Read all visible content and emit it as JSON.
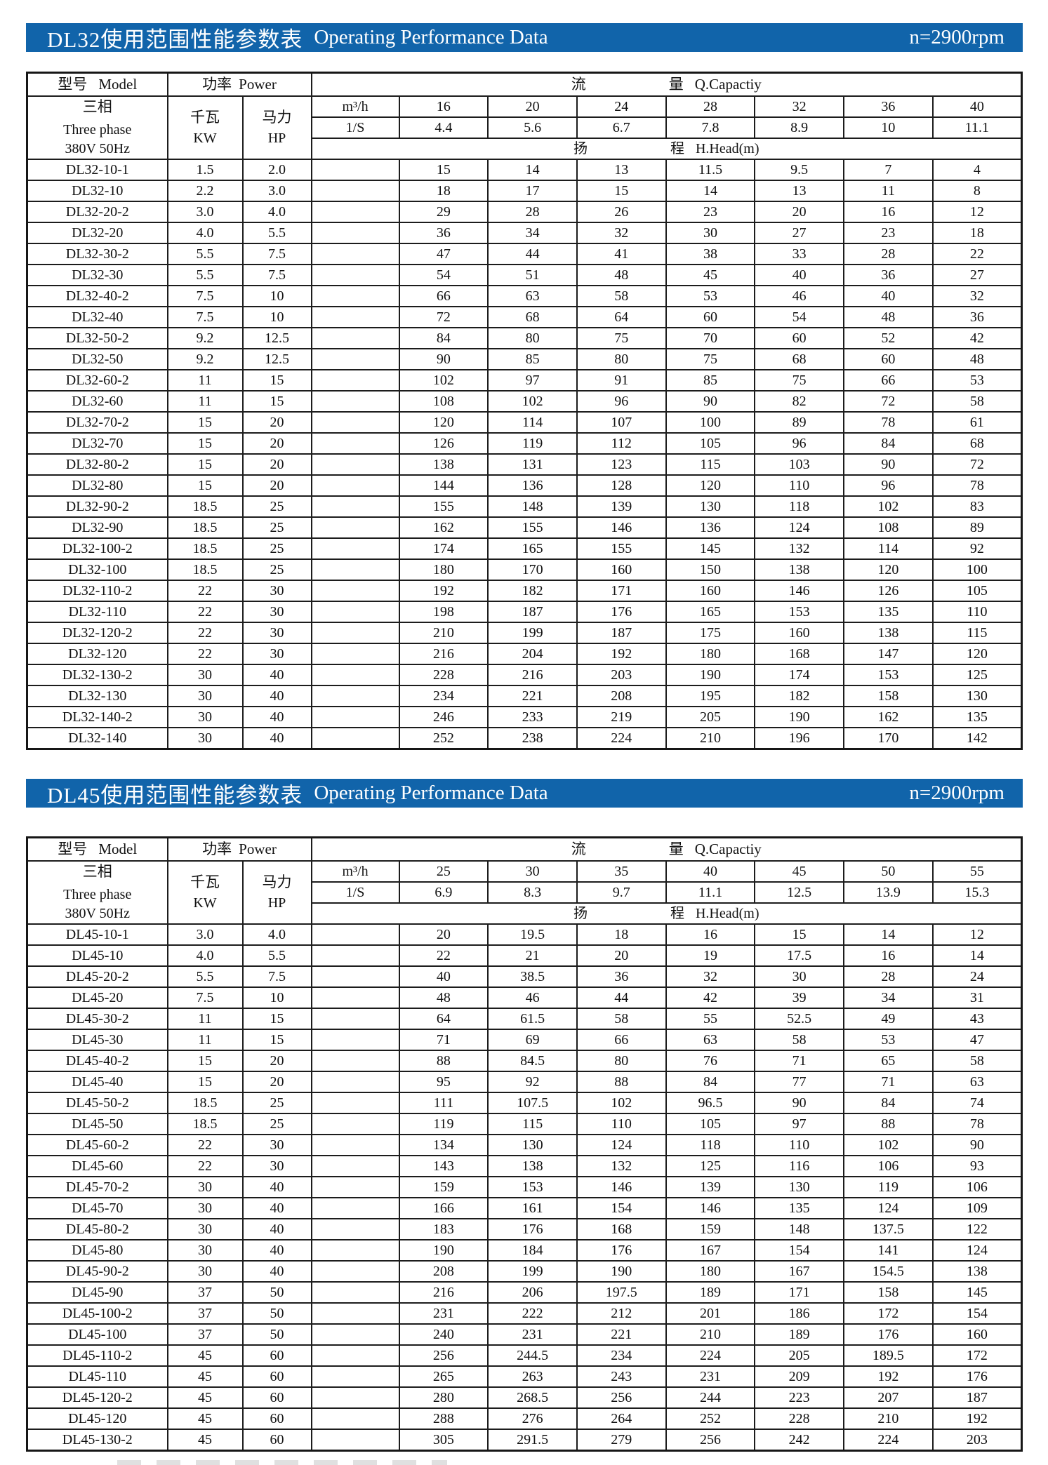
{
  "banner_color": "#1164aa",
  "tables": [
    {
      "banner": {
        "title_zh": "DL32使用范围性能参数表",
        "title_en": "Operating Performance Data",
        "speed": "n=2900rpm"
      },
      "header": {
        "model_zh": "型号",
        "model_en": "Model",
        "power_zh": "功率",
        "power_en": "Power",
        "cap_zh1": "流",
        "cap_zh2": "量",
        "cap_en": "Q.Capactiy",
        "phase_line1": "三相",
        "phase_line2": "Three phase",
        "phase_line3": "380V 50Hz",
        "kw_zh": "千瓦",
        "kw_en": "KW",
        "hp_zh": "马力",
        "hp_en": "HP",
        "unit_m3h": "m³/h",
        "unit_ls": "1/S",
        "flow_values": [
          "16",
          "20",
          "24",
          "28",
          "32",
          "36",
          "40"
        ],
        "ls_values": [
          "4.4",
          "5.6",
          "6.7",
          "7.8",
          "8.9",
          "10",
          "11.1"
        ],
        "head_zh1": "扬",
        "head_zh2": "程",
        "head_en": "H.Head(m)"
      },
      "rows": [
        {
          "model": "DL32-10-1",
          "kw": "1.5",
          "hp": "2.0",
          "heads": [
            "15",
            "14",
            "13",
            "11.5",
            "9.5",
            "7",
            "4"
          ]
        },
        {
          "model": "DL32-10",
          "kw": "2.2",
          "hp": "3.0",
          "heads": [
            "18",
            "17",
            "15",
            "14",
            "13",
            "11",
            "8"
          ]
        },
        {
          "model": "DL32-20-2",
          "kw": "3.0",
          "hp": "4.0",
          "heads": [
            "29",
            "28",
            "26",
            "23",
            "20",
            "16",
            "12"
          ]
        },
        {
          "model": "DL32-20",
          "kw": "4.0",
          "hp": "5.5",
          "heads": [
            "36",
            "34",
            "32",
            "30",
            "27",
            "23",
            "18"
          ]
        },
        {
          "model": "DL32-30-2",
          "kw": "5.5",
          "hp": "7.5",
          "heads": [
            "47",
            "44",
            "41",
            "38",
            "33",
            "28",
            "22"
          ]
        },
        {
          "model": "DL32-30",
          "kw": "5.5",
          "hp": "7.5",
          "heads": [
            "54",
            "51",
            "48",
            "45",
            "40",
            "36",
            "27"
          ]
        },
        {
          "model": "DL32-40-2",
          "kw": "7.5",
          "hp": "10",
          "heads": [
            "66",
            "63",
            "58",
            "53",
            "46",
            "40",
            "32"
          ]
        },
        {
          "model": "DL32-40",
          "kw": "7.5",
          "hp": "10",
          "heads": [
            "72",
            "68",
            "64",
            "60",
            "54",
            "48",
            "36"
          ]
        },
        {
          "model": "DL32-50-2",
          "kw": "9.2",
          "hp": "12.5",
          "heads": [
            "84",
            "80",
            "75",
            "70",
            "60",
            "52",
            "42"
          ]
        },
        {
          "model": "DL32-50",
          "kw": "9.2",
          "hp": "12.5",
          "heads": [
            "90",
            "85",
            "80",
            "75",
            "68",
            "60",
            "48"
          ]
        },
        {
          "model": "DL32-60-2",
          "kw": "11",
          "hp": "15",
          "heads": [
            "102",
            "97",
            "91",
            "85",
            "75",
            "66",
            "53"
          ]
        },
        {
          "model": "DL32-60",
          "kw": "11",
          "hp": "15",
          "heads": [
            "108",
            "102",
            "96",
            "90",
            "82",
            "72",
            "58"
          ]
        },
        {
          "model": "DL32-70-2",
          "kw": "15",
          "hp": "20",
          "heads": [
            "120",
            "114",
            "107",
            "100",
            "89",
            "78",
            "61"
          ]
        },
        {
          "model": "DL32-70",
          "kw": "15",
          "hp": "20",
          "heads": [
            "126",
            "119",
            "112",
            "105",
            "96",
            "84",
            "68"
          ]
        },
        {
          "model": "DL32-80-2",
          "kw": "15",
          "hp": "20",
          "heads": [
            "138",
            "131",
            "123",
            "115",
            "103",
            "90",
            "72"
          ]
        },
        {
          "model": "DL32-80",
          "kw": "15",
          "hp": "20",
          "heads": [
            "144",
            "136",
            "128",
            "120",
            "110",
            "96",
            "78"
          ]
        },
        {
          "model": "DL32-90-2",
          "kw": "18.5",
          "hp": "25",
          "heads": [
            "155",
            "148",
            "139",
            "130",
            "118",
            "102",
            "83"
          ]
        },
        {
          "model": "DL32-90",
          "kw": "18.5",
          "hp": "25",
          "heads": [
            "162",
            "155",
            "146",
            "136",
            "124",
            "108",
            "89"
          ]
        },
        {
          "model": "DL32-100-2",
          "kw": "18.5",
          "hp": "25",
          "heads": [
            "174",
            "165",
            "155",
            "145",
            "132",
            "114",
            "92"
          ]
        },
        {
          "model": "DL32-100",
          "kw": "18.5",
          "hp": "25",
          "heads": [
            "180",
            "170",
            "160",
            "150",
            "138",
            "120",
            "100"
          ]
        },
        {
          "model": "DL32-110-2",
          "kw": "22",
          "hp": "30",
          "heads": [
            "192",
            "182",
            "171",
            "160",
            "146",
            "126",
            "105"
          ]
        },
        {
          "model": "DL32-110",
          "kw": "22",
          "hp": "30",
          "heads": [
            "198",
            "187",
            "176",
            "165",
            "153",
            "135",
            "110"
          ]
        },
        {
          "model": "DL32-120-2",
          "kw": "22",
          "hp": "30",
          "heads": [
            "210",
            "199",
            "187",
            "175",
            "160",
            "138",
            "115"
          ]
        },
        {
          "model": "DL32-120",
          "kw": "22",
          "hp": "30",
          "heads": [
            "216",
            "204",
            "192",
            "180",
            "168",
            "147",
            "120"
          ]
        },
        {
          "model": "DL32-130-2",
          "kw": "30",
          "hp": "40",
          "heads": [
            "228",
            "216",
            "203",
            "190",
            "174",
            "153",
            "125"
          ]
        },
        {
          "model": "DL32-130",
          "kw": "30",
          "hp": "40",
          "heads": [
            "234",
            "221",
            "208",
            "195",
            "182",
            "158",
            "130"
          ]
        },
        {
          "model": "DL32-140-2",
          "kw": "30",
          "hp": "40",
          "heads": [
            "246",
            "233",
            "219",
            "205",
            "190",
            "162",
            "135"
          ]
        },
        {
          "model": "DL32-140",
          "kw": "30",
          "hp": "40",
          "heads": [
            "252",
            "238",
            "224",
            "210",
            "196",
            "170",
            "142"
          ]
        }
      ]
    },
    {
      "banner": {
        "title_zh": "DL45使用范围性能参数表",
        "title_en": "Operating Performance Data",
        "speed": "n=2900rpm"
      },
      "header": {
        "model_zh": "型号",
        "model_en": "Model",
        "power_zh": "功率",
        "power_en": "Power",
        "cap_zh1": "流",
        "cap_zh2": "量",
        "cap_en": "Q.Capactiy",
        "phase_line1": "三相",
        "phase_line2": "Three phase",
        "phase_line3": "380V 50Hz",
        "kw_zh": "千瓦",
        "kw_en": "KW",
        "hp_zh": "马力",
        "hp_en": "HP",
        "unit_m3h": "m³/h",
        "unit_ls": "1/S",
        "flow_values": [
          "25",
          "30",
          "35",
          "40",
          "45",
          "50",
          "55"
        ],
        "ls_values": [
          "6.9",
          "8.3",
          "9.7",
          "11.1",
          "12.5",
          "13.9",
          "15.3"
        ],
        "head_zh1": "扬",
        "head_zh2": "程",
        "head_en": "H.Head(m)"
      },
      "rows": [
        {
          "model": "DL45-10-1",
          "kw": "3.0",
          "hp": "4.0",
          "heads": [
            "20",
            "19.5",
            "18",
            "16",
            "15",
            "14",
            "12"
          ]
        },
        {
          "model": "DL45-10",
          "kw": "4.0",
          "hp": "5.5",
          "heads": [
            "22",
            "21",
            "20",
            "19",
            "17.5",
            "16",
            "14"
          ]
        },
        {
          "model": "DL45-20-2",
          "kw": "5.5",
          "hp": "7.5",
          "heads": [
            "40",
            "38.5",
            "36",
            "32",
            "30",
            "28",
            "24"
          ]
        },
        {
          "model": "DL45-20",
          "kw": "7.5",
          "hp": "10",
          "heads": [
            "48",
            "46",
            "44",
            "42",
            "39",
            "34",
            "31"
          ]
        },
        {
          "model": "DL45-30-2",
          "kw": "11",
          "hp": "15",
          "heads": [
            "64",
            "61.5",
            "58",
            "55",
            "52.5",
            "49",
            "43"
          ]
        },
        {
          "model": "DL45-30",
          "kw": "11",
          "hp": "15",
          "heads": [
            "71",
            "69",
            "66",
            "63",
            "58",
            "53",
            "47"
          ]
        },
        {
          "model": "DL45-40-2",
          "kw": "15",
          "hp": "20",
          "heads": [
            "88",
            "84.5",
            "80",
            "76",
            "71",
            "65",
            "58"
          ]
        },
        {
          "model": "DL45-40",
          "kw": "15",
          "hp": "20",
          "heads": [
            "95",
            "92",
            "88",
            "84",
            "77",
            "71",
            "63"
          ]
        },
        {
          "model": "DL45-50-2",
          "kw": "18.5",
          "hp": "25",
          "heads": [
            "111",
            "107.5",
            "102",
            "96.5",
            "90",
            "84",
            "74"
          ]
        },
        {
          "model": "DL45-50",
          "kw": "18.5",
          "hp": "25",
          "heads": [
            "119",
            "115",
            "110",
            "105",
            "97",
            "88",
            "78"
          ]
        },
        {
          "model": "DL45-60-2",
          "kw": "22",
          "hp": "30",
          "heads": [
            "134",
            "130",
            "124",
            "118",
            "110",
            "102",
            "90"
          ]
        },
        {
          "model": "DL45-60",
          "kw": "22",
          "hp": "30",
          "heads": [
            "143",
            "138",
            "132",
            "125",
            "116",
            "106",
            "93"
          ]
        },
        {
          "model": "DL45-70-2",
          "kw": "30",
          "hp": "40",
          "heads": [
            "159",
            "153",
            "146",
            "139",
            "130",
            "119",
            "106"
          ]
        },
        {
          "model": "DL45-70",
          "kw": "30",
          "hp": "40",
          "heads": [
            "166",
            "161",
            "154",
            "146",
            "135",
            "124",
            "109"
          ]
        },
        {
          "model": "DL45-80-2",
          "kw": "30",
          "hp": "40",
          "heads": [
            "183",
            "176",
            "168",
            "159",
            "148",
            "137.5",
            "122"
          ]
        },
        {
          "model": "DL45-80",
          "kw": "30",
          "hp": "40",
          "heads": [
            "190",
            "184",
            "176",
            "167",
            "154",
            "141",
            "124"
          ]
        },
        {
          "model": "DL45-90-2",
          "kw": "30",
          "hp": "40",
          "heads": [
            "208",
            "199",
            "190",
            "180",
            "167",
            "154.5",
            "138"
          ]
        },
        {
          "model": "DL45-90",
          "kw": "37",
          "hp": "50",
          "heads": [
            "216",
            "206",
            "197.5",
            "189",
            "171",
            "158",
            "145"
          ]
        },
        {
          "model": "DL45-100-2",
          "kw": "37",
          "hp": "50",
          "heads": [
            "231",
            "222",
            "212",
            "201",
            "186",
            "172",
            "154"
          ]
        },
        {
          "model": "DL45-100",
          "kw": "37",
          "hp": "50",
          "heads": [
            "240",
            "231",
            "221",
            "210",
            "189",
            "176",
            "160"
          ]
        },
        {
          "model": "DL45-110-2",
          "kw": "45",
          "hp": "60",
          "heads": [
            "256",
            "244.5",
            "234",
            "224",
            "205",
            "189.5",
            "172"
          ]
        },
        {
          "model": "DL45-110",
          "kw": "45",
          "hp": "60",
          "heads": [
            "265",
            "263",
            "243",
            "231",
            "209",
            "192",
            "176"
          ]
        },
        {
          "model": "DL45-120-2",
          "kw": "45",
          "hp": "60",
          "heads": [
            "280",
            "268.5",
            "256",
            "244",
            "223",
            "207",
            "187"
          ]
        },
        {
          "model": "DL45-120",
          "kw": "45",
          "hp": "60",
          "heads": [
            "288",
            "276",
            "264",
            "252",
            "228",
            "210",
            "192"
          ]
        },
        {
          "model": "DL45-130-2",
          "kw": "45",
          "hp": "60",
          "heads": [
            "305",
            "291.5",
            "279",
            "256",
            "242",
            "224",
            "203"
          ]
        }
      ]
    }
  ]
}
